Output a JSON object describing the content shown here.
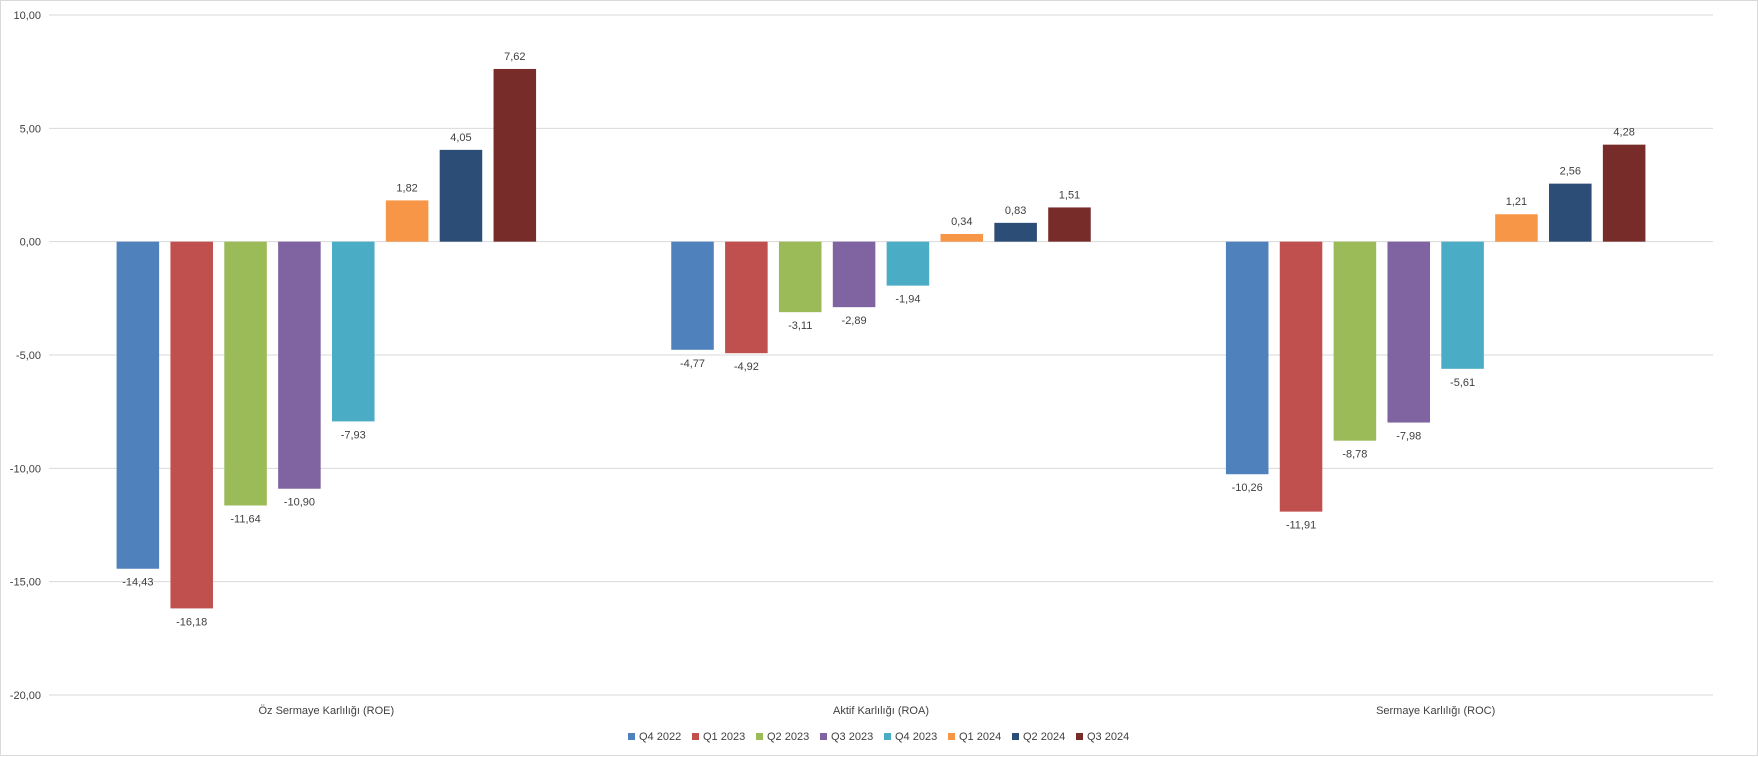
{
  "chart_data": {
    "type": "bar",
    "categories": [
      "Öz Sermaye Karlılığı (ROE)",
      "Aktif Karlılığı (ROA)",
      "Sermaye Karlılığı (ROC)"
    ],
    "series": [
      {
        "name": "Q4 2022",
        "color": "#4f81bd",
        "values": [
          -14.43,
          -4.77,
          -10.26
        ],
        "labels": [
          "-14,43",
          "-4,77",
          "-10,26"
        ]
      },
      {
        "name": "Q1 2023",
        "color": "#c0504d",
        "values": [
          -16.18,
          -4.92,
          -11.91
        ],
        "labels": [
          "-16,18",
          "-4,92",
          "-11,91"
        ]
      },
      {
        "name": "Q2 2023",
        "color": "#9bbb59",
        "values": [
          -11.64,
          -3.11,
          -8.78
        ],
        "labels": [
          "-11,64",
          "-3,11",
          "-8,78"
        ]
      },
      {
        "name": "Q3 2023",
        "color": "#8064a2",
        "values": [
          -10.9,
          -2.89,
          -7.98
        ],
        "labels": [
          "-10,90",
          "-2,89",
          "-7,98"
        ]
      },
      {
        "name": "Q4 2023",
        "color": "#4bacc6",
        "values": [
          -7.93,
          -1.94,
          -5.61
        ],
        "labels": [
          "-7,93",
          "-1,94",
          "-5,61"
        ]
      },
      {
        "name": "Q1 2024",
        "color": "#f79646",
        "values": [
          1.82,
          0.34,
          1.21
        ],
        "labels": [
          "1,82",
          "0,34",
          "1,21"
        ]
      },
      {
        "name": "Q2 2024",
        "color": "#2c4d75",
        "values": [
          4.05,
          0.83,
          2.56
        ],
        "labels": [
          "4,05",
          "0,83",
          "2,56"
        ]
      },
      {
        "name": "Q3 2024",
        "color": "#772c2a",
        "values": [
          7.62,
          1.51,
          4.28
        ],
        "labels": [
          "7,62",
          "1,51",
          "4,28"
        ]
      }
    ],
    "yticks": [
      10,
      5,
      0,
      -5,
      -10,
      -15,
      -20
    ],
    "ytick_labels": [
      "10,00",
      "5,00",
      "0,00",
      "-5,00",
      "-10,00",
      "-15,00",
      "-20,00"
    ],
    "ylim": [
      -20,
      10
    ],
    "grid": true,
    "legend_position": "bottom"
  }
}
